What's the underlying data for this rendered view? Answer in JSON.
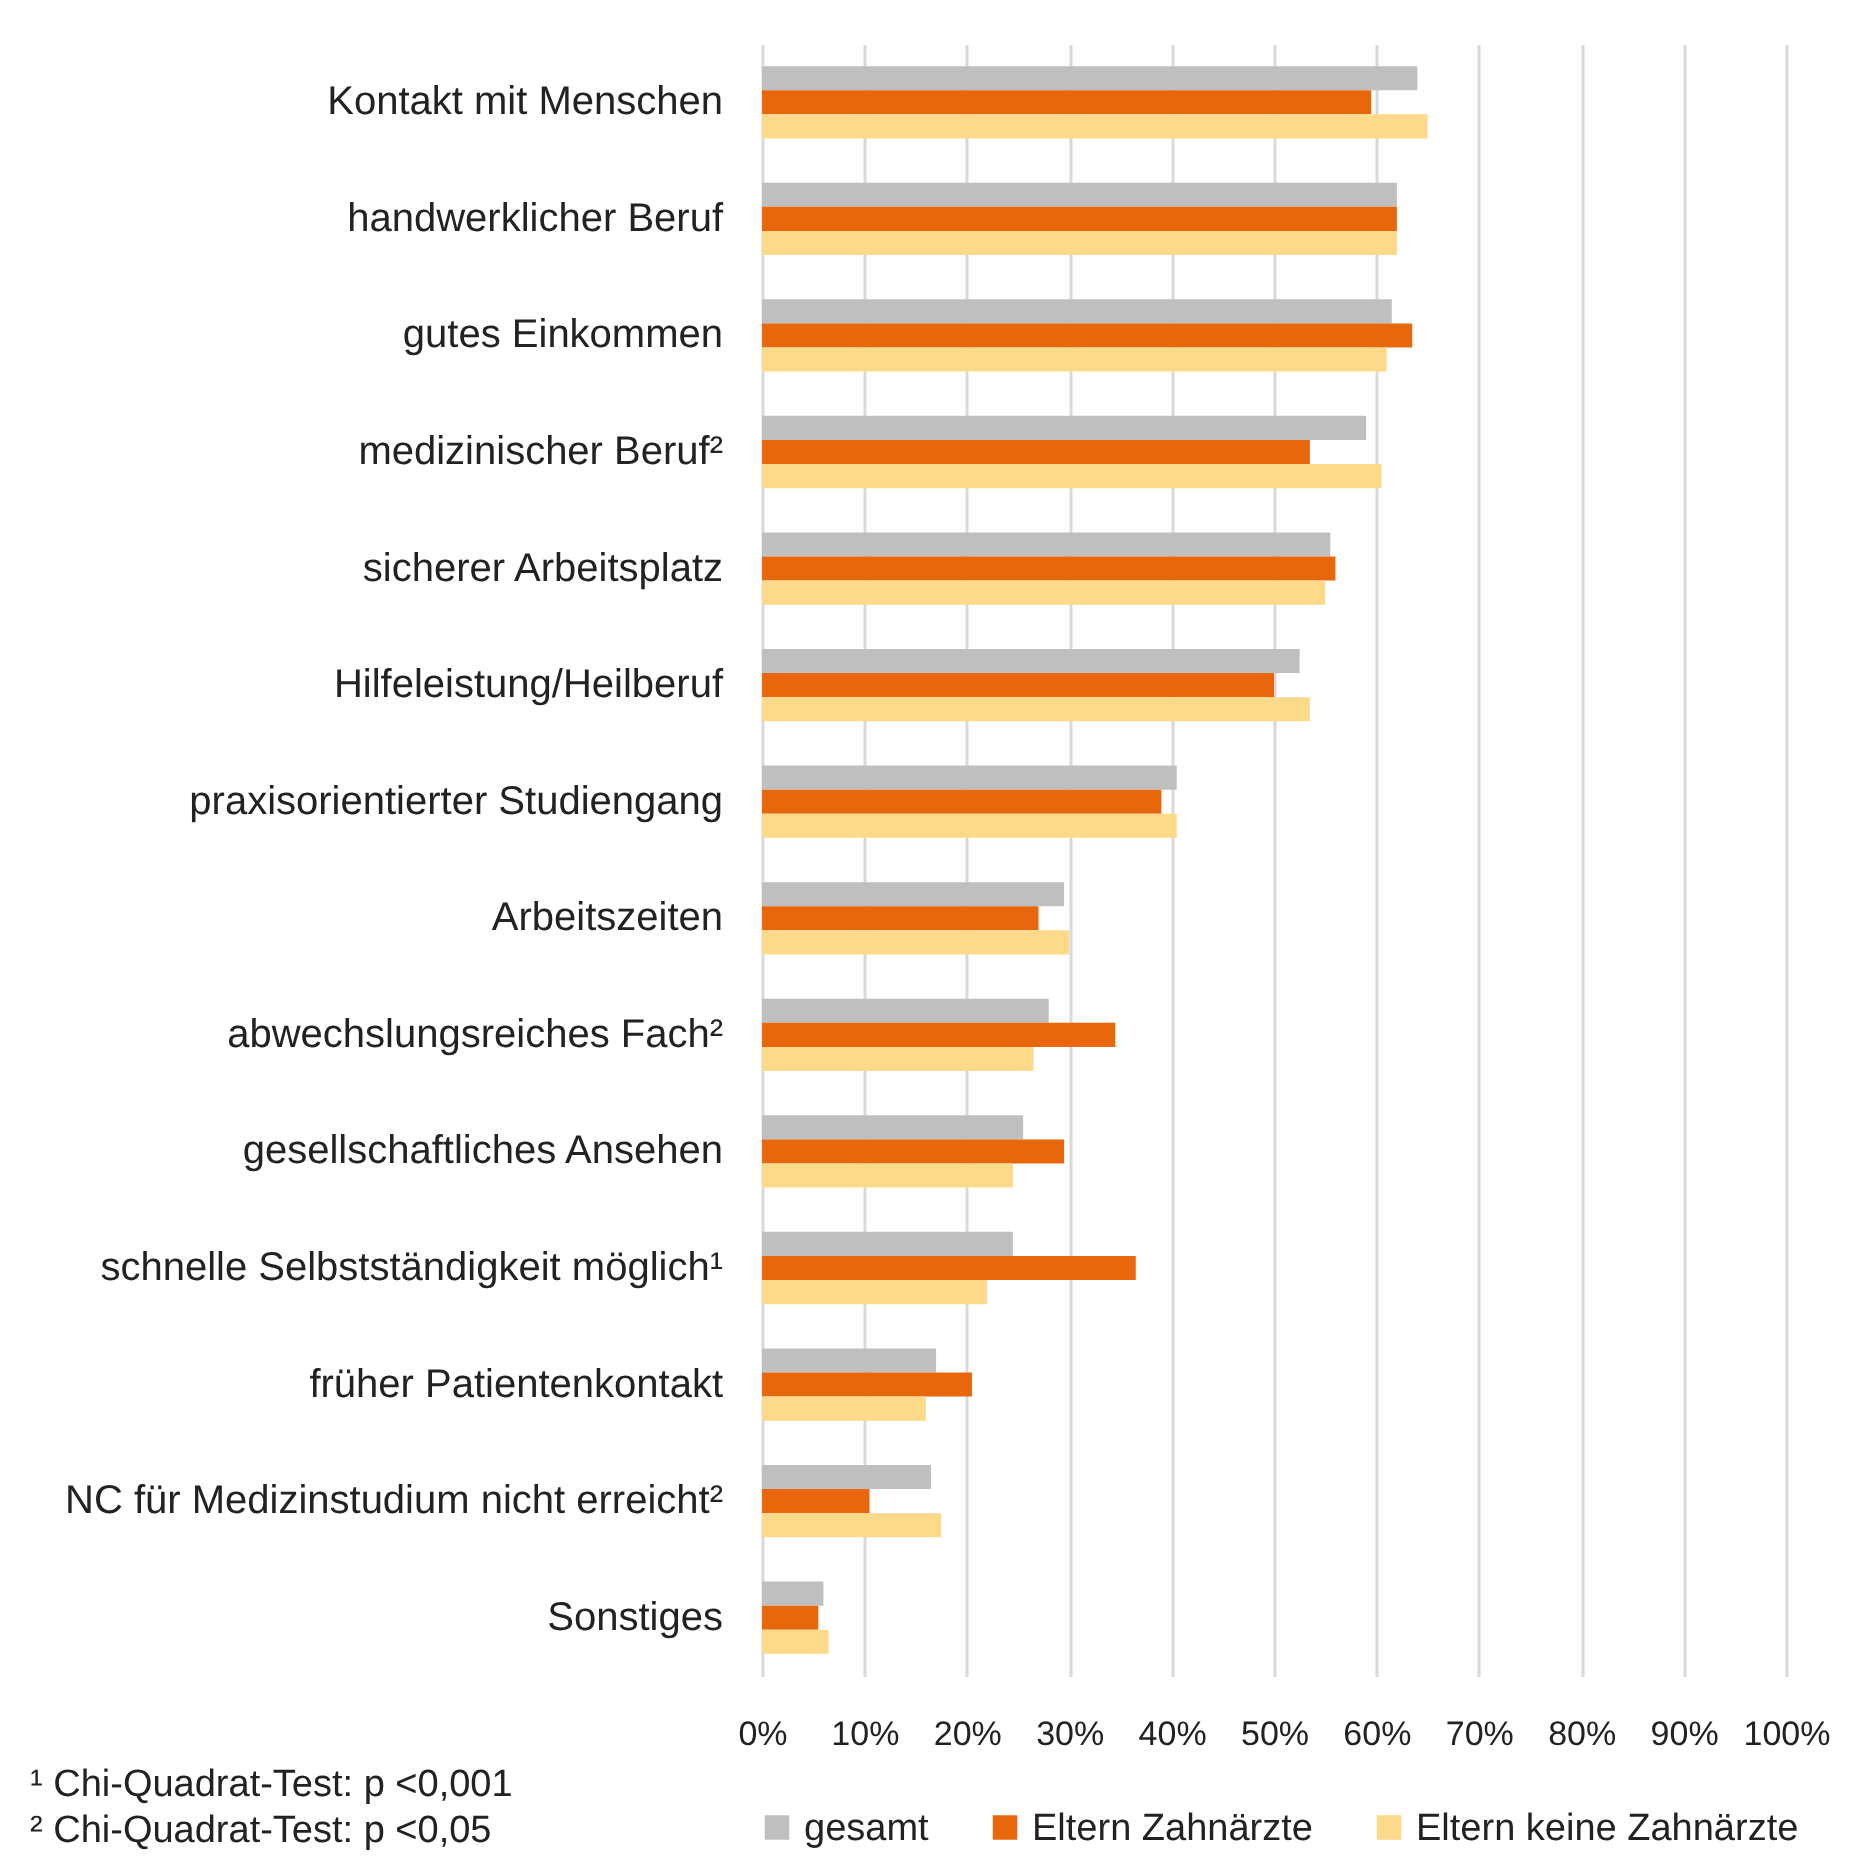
{
  "chart_data": {
    "type": "bar",
    "orientation": "horizontal",
    "categories": [
      "Kontakt mit Menschen",
      "handwerklicher Beruf",
      "gutes Einkommen",
      "medizinischer Beruf²",
      "sicherer Arbeitsplatz",
      "Hilfeleistung/Heilberuf",
      "praxisorientierter Studiengang",
      "Arbeitszeiten",
      "abwechslungsreiches Fach²",
      "gesellschaftliches Ansehen",
      "schnelle Selbstständigkeit möglich¹",
      "früher Patientenkontakt",
      "NC für Medizinstudium nicht erreicht²",
      "Sonstiges"
    ],
    "series": [
      {
        "name": "gesamt",
        "color": "#bfbfbf",
        "values": [
          64,
          62,
          61.5,
          59,
          55.5,
          52.5,
          40.5,
          29.5,
          28,
          25.5,
          24.5,
          17,
          16.5,
          6
        ]
      },
      {
        "name": "Eltern Zahnärzte",
        "color": "#e8660c",
        "values": [
          59.5,
          62,
          63.5,
          53.5,
          56,
          50,
          39,
          27,
          34.5,
          29.5,
          36.5,
          20.5,
          10.5,
          5.5
        ]
      },
      {
        "name": "Eltern keine Zahnärzte",
        "color": "#fdd98a",
        "values": [
          65,
          62,
          61,
          60.5,
          55,
          53.5,
          40.5,
          30,
          26.5,
          24.5,
          22,
          16,
          17.5,
          6.5
        ]
      }
    ],
    "xlim": [
      0,
      100
    ],
    "xticks": [
      {
        "value": 0,
        "label": "0%"
      },
      {
        "value": 10,
        "label": "10%"
      },
      {
        "value": 20,
        "label": "20%"
      },
      {
        "value": 30,
        "label": "30%"
      },
      {
        "value": 40,
        "label": "40%"
      },
      {
        "value": 50,
        "label": "50%"
      },
      {
        "value": 60,
        "label": "60%"
      },
      {
        "value": 70,
        "label": "70%"
      },
      {
        "value": 80,
        "label": "80%"
      },
      {
        "value": 90,
        "label": "90%"
      },
      {
        "value": 100,
        "label": "100%"
      }
    ],
    "grid": "x",
    "legend": "bottom",
    "annotations": [
      "¹ Chi-Quadrat-Test: p <0,001",
      "² Chi-Quadrat-Test: p <0,05"
    ]
  }
}
